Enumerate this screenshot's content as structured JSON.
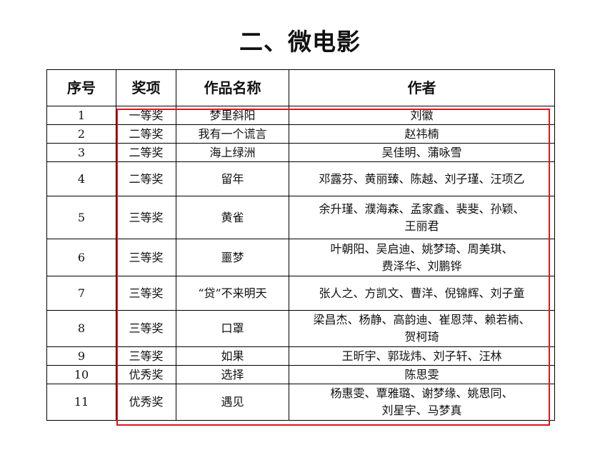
{
  "title": "二、微电影",
  "headers": [
    "序号",
    "奖项",
    "作品名称",
    "作者"
  ],
  "highlight_color": "#e0141e",
  "rows": [
    {
      "no": "1",
      "award": "一等奖",
      "work": "梦里斜阳",
      "authors": [
        "刘徽"
      ]
    },
    {
      "no": "2",
      "award": "二等奖",
      "work": "我有一个谎言",
      "authors": [
        "赵祎楠"
      ]
    },
    {
      "no": "3",
      "award": "二等奖",
      "work": "海上绿洲",
      "authors": [
        "吴佳明、蒲咏雪"
      ]
    },
    {
      "no": "4",
      "award": "二等奖",
      "work": "留年",
      "authors": [
        "邓露芬、黄丽臻、陈越、刘子瑾、汪项乙"
      ]
    },
    {
      "no": "5",
      "award": "三等奖",
      "work": "黄雀",
      "authors": [
        "余升瑾、濮海森、孟家鑫、裴斐、孙颖、",
        "王丽君"
      ]
    },
    {
      "no": "6",
      "award": "三等奖",
      "work": "噩梦",
      "authors": [
        "叶朝阳、吴启迪、姚梦琦、周美琪、",
        "费泽华、刘鹏铧"
      ]
    },
    {
      "no": "7",
      "award": "三等奖",
      "work": "“贷”不来明天",
      "authors": [
        "张人之、方凯文、曹洋、倪锦辉、刘子童"
      ]
    },
    {
      "no": "8",
      "award": "三等奖",
      "work": "口罩",
      "authors": [
        "梁昌杰、杨静、高韵迪、崔恩萍、赖若楠、",
        "贺柯琦"
      ]
    },
    {
      "no": "9",
      "award": "三等奖",
      "work": "如果",
      "authors": [
        "王昕宇、郭珑炜、刘子轩、汪林"
      ]
    },
    {
      "no": "10",
      "award": "优秀奖",
      "work": "选择",
      "authors": [
        "陈思雯"
      ]
    },
    {
      "no": "11",
      "award": "优秀奖",
      "work": "遇见",
      "authors": [
        "杨惠雯、覃雅璐、谢梦缘、姚思同、",
        "刘星宇、马梦真"
      ]
    }
  ]
}
